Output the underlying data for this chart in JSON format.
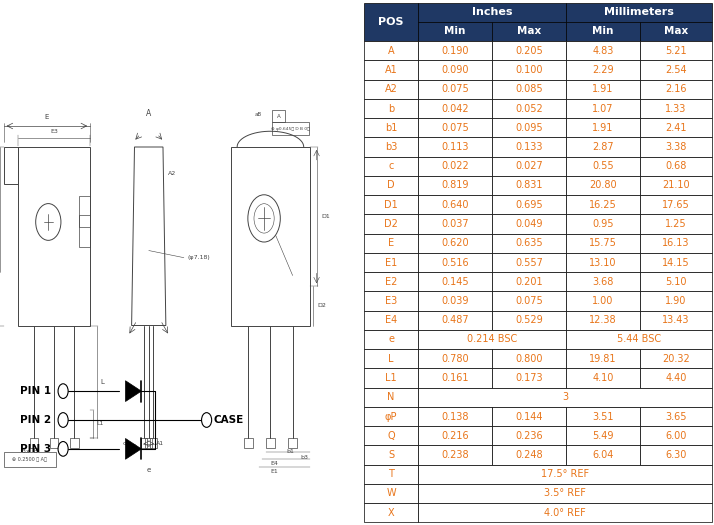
{
  "table_data": {
    "rows": [
      [
        "A",
        "0.190",
        "0.205",
        "4.83",
        "5.21"
      ],
      [
        "A1",
        "0.090",
        "0.100",
        "2.29",
        "2.54"
      ],
      [
        "A2",
        "0.075",
        "0.085",
        "1.91",
        "2.16"
      ],
      [
        "b",
        "0.042",
        "0.052",
        "1.07",
        "1.33"
      ],
      [
        "b1",
        "0.075",
        "0.095",
        "1.91",
        "2.41"
      ],
      [
        "b3",
        "0.113",
        "0.133",
        "2.87",
        "3.38"
      ],
      [
        "c",
        "0.022",
        "0.027",
        "0.55",
        "0.68"
      ],
      [
        "D",
        "0.819",
        "0.831",
        "20.80",
        "21.10"
      ],
      [
        "D1",
        "0.640",
        "0.695",
        "16.25",
        "17.65"
      ],
      [
        "D2",
        "0.037",
        "0.049",
        "0.95",
        "1.25"
      ],
      [
        "E",
        "0.620",
        "0.635",
        "15.75",
        "16.13"
      ],
      [
        "E1",
        "0.516",
        "0.557",
        "13.10",
        "14.15"
      ],
      [
        "E2",
        "0.145",
        "0.201",
        "3.68",
        "5.10"
      ],
      [
        "E3",
        "0.039",
        "0.075",
        "1.00",
        "1.90"
      ],
      [
        "E4",
        "0.487",
        "0.529",
        "12.38",
        "13.43"
      ],
      [
        "e",
        "0.214 BSC",
        "",
        "5.44 BSC",
        ""
      ],
      [
        "L",
        "0.780",
        "0.800",
        "19.81",
        "20.32"
      ],
      [
        "L1",
        "0.161",
        "0.173",
        "4.10",
        "4.40"
      ],
      [
        "N",
        "3",
        "",
        "",
        ""
      ],
      [
        "φP",
        "0.138",
        "0.144",
        "3.51",
        "3.65"
      ],
      [
        "Q",
        "0.216",
        "0.236",
        "5.49",
        "6.00"
      ],
      [
        "S",
        "0.238",
        "0.248",
        "6.04",
        "6.30"
      ],
      [
        "T",
        "17.5° REF",
        "",
        "",
        ""
      ],
      [
        "W",
        "3.5° REF",
        "",
        "",
        ""
      ],
      [
        "X",
        "4.0° REF",
        "",
        "",
        ""
      ]
    ]
  },
  "header_bg": "#1F3864",
  "header_fg": "#FFFFFF",
  "cell_fg": "#E8751A",
  "border_color": "#000000",
  "bg_color": "#FFFFFF",
  "span_all": [
    "N",
    "T",
    "W",
    "X"
  ],
  "span_half": [
    "e"
  ]
}
